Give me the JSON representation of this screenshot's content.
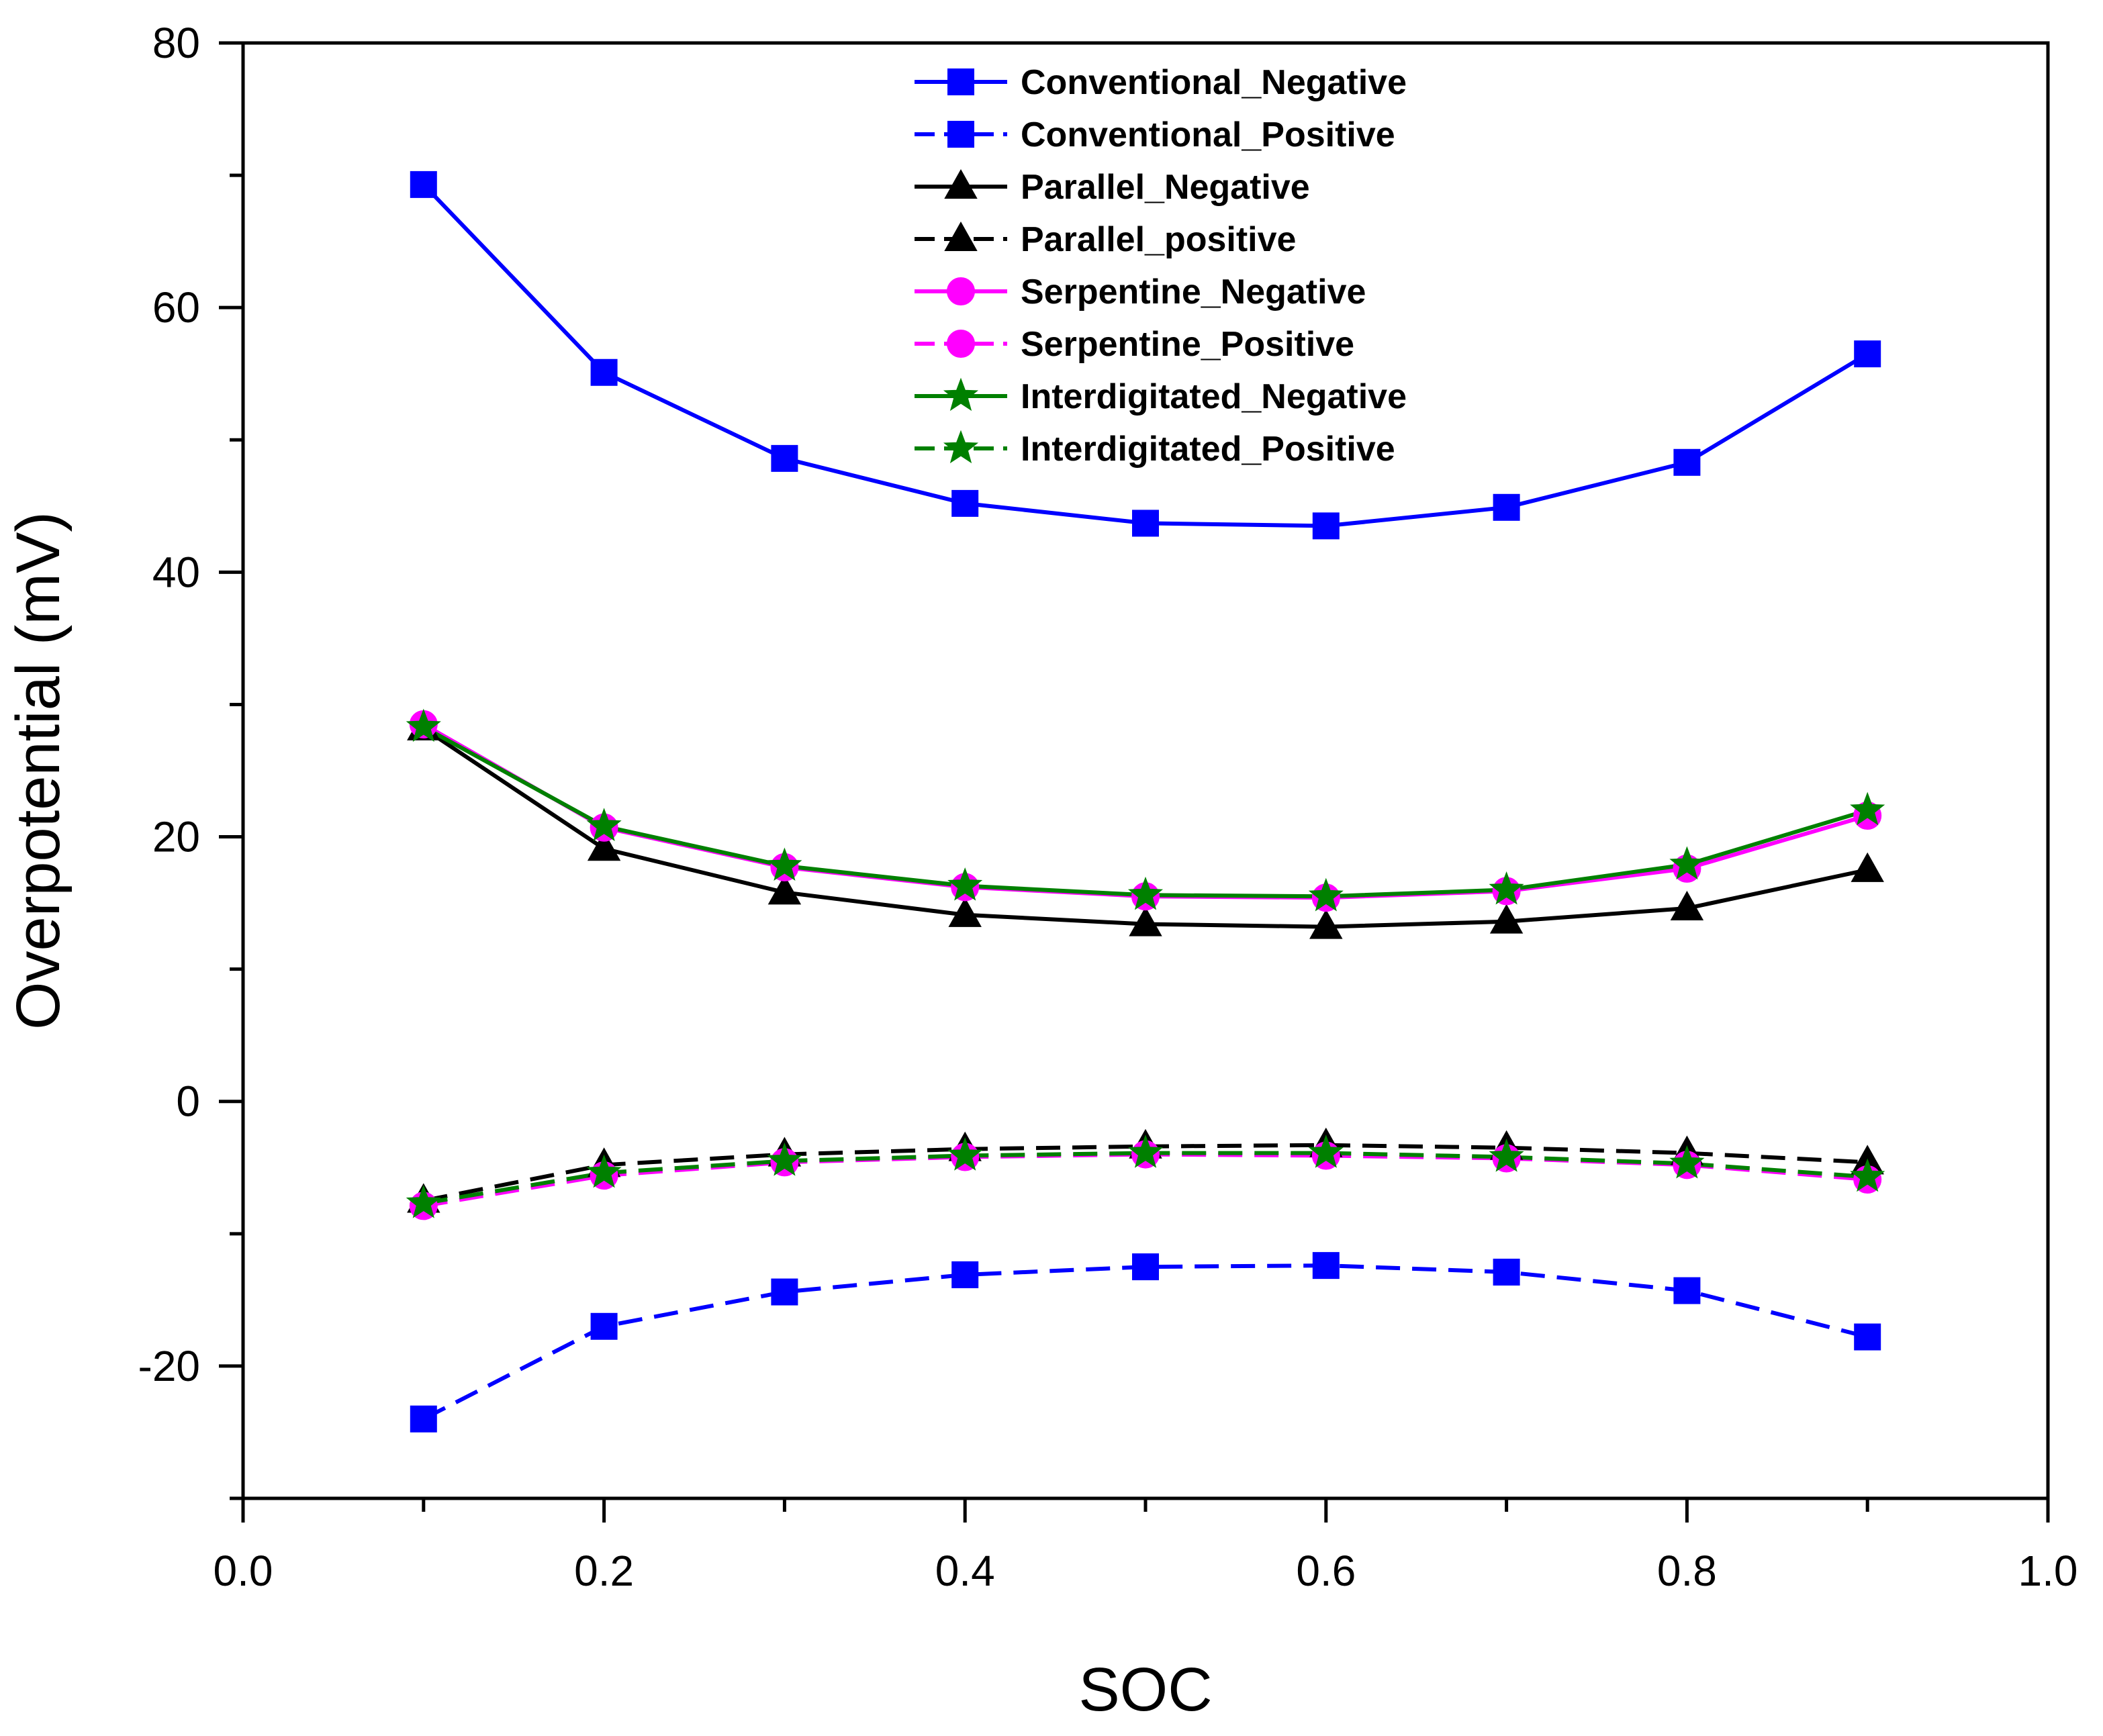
{
  "chart_data": {
    "type": "line",
    "title": "",
    "xlabel": "SOC",
    "ylabel": "Overpotential (mV)",
    "xlim": [
      0.0,
      1.0
    ],
    "ylim": [
      -30,
      80
    ],
    "xticks": [
      "0.0",
      "0.2",
      "0.4",
      "0.6",
      "0.8",
      "1.0"
    ],
    "yticks": [
      "-20",
      "0",
      "20",
      "40",
      "60",
      "80"
    ],
    "x": [
      0.1,
      0.2,
      0.3,
      0.4,
      0.5,
      0.6,
      0.7,
      0.8,
      0.9
    ],
    "grid": false,
    "legend_position": "top-center",
    "series": [
      {
        "name": "Conventional_Negative",
        "values": [
          69.3,
          55.1,
          48.6,
          45.2,
          43.7,
          43.5,
          44.9,
          48.3,
          56.5
        ],
        "color": "#0000ff",
        "marker": "square",
        "dashed": false
      },
      {
        "name": "Conventional_Positive",
        "values": [
          -24.0,
          -17.0,
          -14.4,
          -13.1,
          -12.5,
          -12.4,
          -12.9,
          -14.3,
          -17.8
        ],
        "color": "#0000ff",
        "marker": "square",
        "dashed": true
      },
      {
        "name": "Parallel_Negative",
        "values": [
          28.2,
          19.1,
          15.8,
          14.1,
          13.4,
          13.2,
          13.6,
          14.6,
          17.5
        ],
        "color": "#000000",
        "marker": "triangle",
        "dashed": false
      },
      {
        "name": "Parallel_positive",
        "values": [
          -7.5,
          -4.8,
          -4.0,
          -3.6,
          -3.4,
          -3.3,
          -3.5,
          -3.9,
          -4.6
        ],
        "color": "#000000",
        "marker": "triangle",
        "dashed": true
      },
      {
        "name": "Serpentine_Negative",
        "values": [
          28.5,
          20.7,
          17.7,
          16.2,
          15.5,
          15.4,
          15.9,
          17.6,
          21.6
        ],
        "color": "#ff00ff",
        "marker": "circle",
        "dashed": false
      },
      {
        "name": "Serpentine_Positive",
        "values": [
          -7.9,
          -5.6,
          -4.6,
          -4.2,
          -4.0,
          -4.1,
          -4.3,
          -4.8,
          -5.9
        ],
        "color": "#ff00ff",
        "marker": "circle",
        "dashed": true
      },
      {
        "name": "Interdigitated_Negative",
        "values": [
          28.3,
          20.8,
          17.8,
          16.3,
          15.6,
          15.5,
          16.0,
          17.9,
          22.0
        ],
        "color": "#008000",
        "marker": "star",
        "dashed": false
      },
      {
        "name": "Interdigitated_Positive",
        "values": [
          -7.7,
          -5.4,
          -4.5,
          -4.1,
          -3.9,
          -3.9,
          -4.2,
          -4.7,
          -5.7
        ],
        "color": "#008000",
        "marker": "star",
        "dashed": true
      }
    ]
  }
}
